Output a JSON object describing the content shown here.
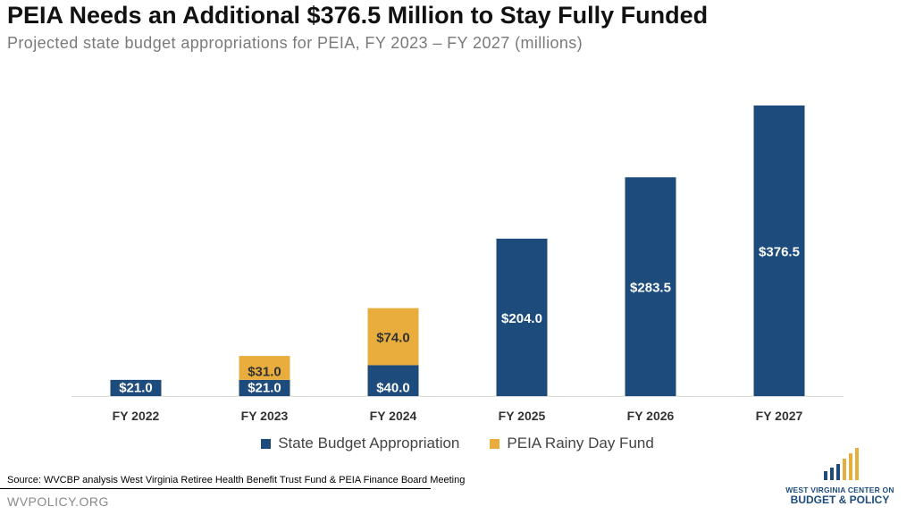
{
  "header": {
    "title": "PEIA Needs an Additional $376.5 Million to Stay Fully Funded",
    "subtitle": "Projected state budget appropriations for PEIA, FY 2023 – FY 2027 (millions)"
  },
  "chart_data": {
    "type": "bar",
    "stacked": true,
    "categories": [
      "FY 2022",
      "FY 2023",
      "FY 2024",
      "FY 2025",
      "FY 2026",
      "FY 2027"
    ],
    "series": [
      {
        "name": "State Budget Appropriation",
        "color": "#1d4b7c",
        "values": [
          21.0,
          21.0,
          40.0,
          204.0,
          283.5,
          376.5
        ],
        "labels": [
          "$21.0",
          "$21.0",
          "$40.0",
          "$204.0",
          "$283.5",
          "$376.5"
        ]
      },
      {
        "name": "PEIA Rainy Day Fund",
        "color": "#e8ad3c",
        "values": [
          0,
          31.0,
          74.0,
          0,
          0,
          0
        ],
        "labels": [
          "",
          "$31.0",
          "$74.0",
          "",
          "",
          ""
        ]
      }
    ],
    "ylim": [
      0,
      376.5
    ],
    "grid": false,
    "legend_position": "bottom"
  },
  "footer": {
    "source": "Source:  WVCBP analysis West Virginia Retiree Health Benefit Trust Fund & PEIA Finance Board Meeting",
    "site": "WVPOLICY.ORG",
    "logo_line1": "WEST VIRGINIA CENTER ON",
    "logo_line2": "BUDGET & POLICY"
  }
}
